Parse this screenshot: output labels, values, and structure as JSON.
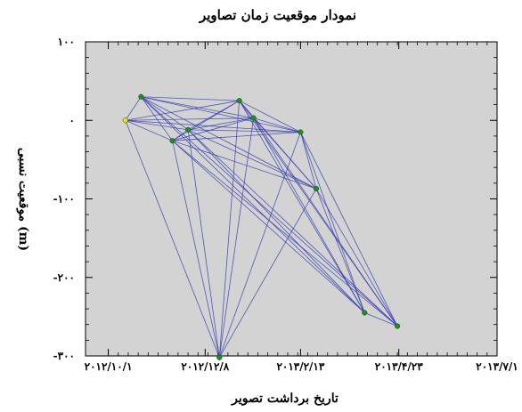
{
  "chart_data": {
    "type": "scatter",
    "title": "نمودار موقعیت زمان تصاویر",
    "xlabel": "تاریخ برداشت تصویر",
    "ylabel": "موقعیت نسبی (m)",
    "xlim": [
      "2012-09-15",
      "2013-07-01"
    ],
    "ylim": [
      -300,
      100
    ],
    "x_tick_values": [
      "2012-10-01",
      "2012-12-08",
      "2013-02-13",
      "2013-04-23",
      "2013-07-01"
    ],
    "x_tick_labels": [
      "۲۰۱۲/۱۰/۱",
      "۲۰۱۲/۱۲/۸",
      "۲۰۱۳/۲/۱۳",
      "۲۰۱۳/۴/۲۳",
      "۲۰۱۳/۷/۱"
    ],
    "y_tick_values": [
      100,
      0,
      -100,
      -200,
      -300
    ],
    "y_tick_labels": [
      "۱۰۰",
      "۰",
      "-۱۰۰",
      "-۲۰۰",
      "-۳۰۰"
    ],
    "grid": false,
    "background_color": "#d3d3d3",
    "line_color": "#3b3fae",
    "point_color": "#1f8f1f",
    "master_point_color": "#f2e600",
    "points": [
      {
        "x": "2012-10-13",
        "y": 0
      },
      {
        "x": "2012-10-24",
        "y": 30
      },
      {
        "x": "2012-11-15",
        "y": -26
      },
      {
        "x": "2012-11-26",
        "y": -12
      },
      {
        "x": "2012-12-18",
        "y": -302
      },
      {
        "x": "2013-01-01",
        "y": 25
      },
      {
        "x": "2013-01-11",
        "y": 3
      },
      {
        "x": "2013-02-13",
        "y": -15
      },
      {
        "x": "2013-02-24",
        "y": -87
      },
      {
        "x": "2013-03-30",
        "y": -245
      },
      {
        "x": "2013-04-22",
        "y": -262
      }
    ],
    "connections": [
      [
        0,
        1
      ],
      [
        0,
        2
      ],
      [
        0,
        3
      ],
      [
        0,
        4
      ],
      [
        0,
        5
      ],
      [
        0,
        6
      ],
      [
        0,
        7
      ],
      [
        1,
        2
      ],
      [
        1,
        3
      ],
      [
        1,
        5
      ],
      [
        1,
        6
      ],
      [
        1,
        7
      ],
      [
        1,
        8
      ],
      [
        1,
        9
      ],
      [
        1,
        10
      ],
      [
        2,
        3
      ],
      [
        2,
        4
      ],
      [
        2,
        5
      ],
      [
        2,
        6
      ],
      [
        2,
        7
      ],
      [
        2,
        8
      ],
      [
        2,
        9
      ],
      [
        2,
        10
      ],
      [
        3,
        4
      ],
      [
        3,
        5
      ],
      [
        3,
        6
      ],
      [
        3,
        7
      ],
      [
        3,
        8
      ],
      [
        3,
        9
      ],
      [
        3,
        10
      ],
      [
        4,
        5
      ],
      [
        4,
        6
      ],
      [
        4,
        7
      ],
      [
        4,
        8
      ],
      [
        5,
        6
      ],
      [
        5,
        7
      ],
      [
        5,
        8
      ],
      [
        5,
        9
      ],
      [
        5,
        10
      ],
      [
        6,
        7
      ],
      [
        6,
        8
      ],
      [
        6,
        9
      ],
      [
        6,
        10
      ],
      [
        7,
        8
      ],
      [
        7,
        9
      ],
      [
        7,
        10
      ],
      [
        8,
        9
      ],
      [
        8,
        10
      ],
      [
        9,
        10
      ]
    ]
  }
}
